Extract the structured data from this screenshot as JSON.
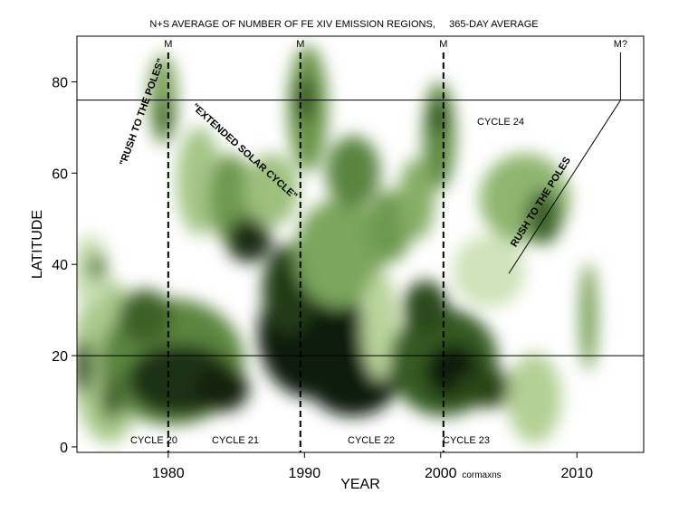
{
  "chart_data": {
    "type": "contour",
    "title": "N+S AVERAGE OF NUMBER OF FE XIV EMISSION REGIONS,     365-DAY AVERAGE",
    "x_label": "YEAR",
    "y_label": "LATITUDE",
    "footnote": "cormaxns",
    "xlim": [
      1973.3,
      2014.9
    ],
    "ylim": [
      -1.2,
      90
    ],
    "xticks": [
      1980,
      1990,
      2000,
      2010
    ],
    "yticks": [
      0,
      20,
      40,
      60,
      80
    ],
    "hlines": [
      76,
      20
    ],
    "maxima": [
      {
        "x": 1980,
        "label": "M",
        "style": "dashed"
      },
      {
        "x": 1989.7,
        "label": "M",
        "style": "dashed"
      },
      {
        "x": 2000.2,
        "label": "M",
        "style": "dashed"
      },
      {
        "x": 2013.2,
        "label": "M?",
        "style": "solid"
      }
    ],
    "rush_line": {
      "x": [
        2005,
        2013.2
      ],
      "y": [
        38,
        76
      ]
    },
    "annotations": [
      "\"RUSH TO THE POLES\"",
      "\"EXTENDED SOLAR CYCLE\"",
      "RUSH TO THE POLES",
      "CYCLE 20",
      "CYCLE 21",
      "CYCLE 22",
      "CYCLE 23",
      "CYCLE 24"
    ]
  }
}
